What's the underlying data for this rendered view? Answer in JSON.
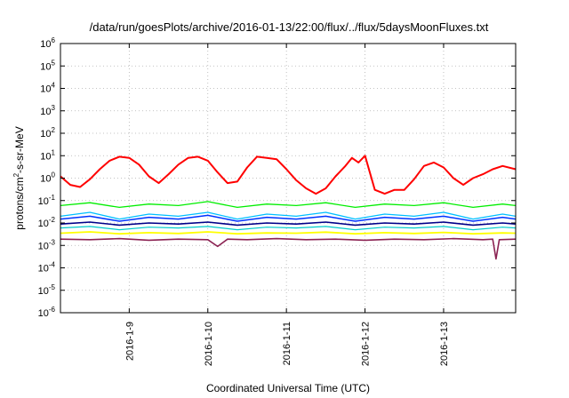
{
  "chart_data": {
    "type": "line",
    "title": "/data/run/goesPlots/archive/2016-01-13/22:00/flux/../flux/5daysMoonFluxes.txt",
    "xlabel": "Coordinated Universal Time (UTC)",
    "ylabel": {
      "base": "protons/cm",
      "sup": "2",
      "rest": "-s-sr-MeV"
    },
    "y_scale": "log",
    "xlim": [
      "2016-01-08T03:00",
      "2016-01-13T22:00"
    ],
    "ylim": [
      1e-06,
      1000000.0
    ],
    "grid": true,
    "x_ticks": [
      {
        "label": "2016-1-9",
        "date": "2016-01-09T00:00"
      },
      {
        "label": "2016-1-10",
        "date": "2016-01-10T00:00"
      },
      {
        "label": "2016-1-11",
        "date": "2016-01-11T00:00"
      },
      {
        "label": "2016-1-12",
        "date": "2016-01-12T00:00"
      },
      {
        "label": "2016-1-13",
        "date": "2016-01-13T00:00"
      }
    ],
    "y_ticks": [
      {
        "base": "10",
        "exp": "6",
        "value": 1000000.0
      },
      {
        "base": "10",
        "exp": "5",
        "value": 100000.0
      },
      {
        "base": "10",
        "exp": "4",
        "value": 10000.0
      },
      {
        "base": "10",
        "exp": "3",
        "value": 1000.0
      },
      {
        "base": "10",
        "exp": "2",
        "value": 100.0
      },
      {
        "base": "10",
        "exp": "1",
        "value": 10.0
      },
      {
        "base": "10",
        "exp": "0",
        "value": 1.0
      },
      {
        "base": "10",
        "exp": "-1",
        "value": 0.1
      },
      {
        "base": "10",
        "exp": "-2",
        "value": 0.01
      },
      {
        "base": "10",
        "exp": "-3",
        "value": 0.001
      },
      {
        "base": "10",
        "exp": "-4",
        "value": 0.0001
      },
      {
        "base": "10",
        "exp": "-5",
        "value": 1e-05
      },
      {
        "base": "10",
        "exp": "-6",
        "value": 1e-06
      }
    ],
    "series": [
      {
        "color": "#ff0000",
        "width": 2.0,
        "x": [
          "2016-01-08T03:00",
          "2016-01-08T06:00",
          "2016-01-08T09:00",
          "2016-01-08T12:00",
          "2016-01-08T15:00",
          "2016-01-08T18:00",
          "2016-01-08T21:00",
          "2016-01-09T00:00",
          "2016-01-09T03:00",
          "2016-01-09T06:00",
          "2016-01-09T09:00",
          "2016-01-09T12:00",
          "2016-01-09T15:00",
          "2016-01-09T18:00",
          "2016-01-09T21:00",
          "2016-01-10T00:00",
          "2016-01-10T03:00",
          "2016-01-10T06:00",
          "2016-01-10T09:00",
          "2016-01-10T12:00",
          "2016-01-10T15:00",
          "2016-01-10T18:00",
          "2016-01-10T21:00",
          "2016-01-11T00:00",
          "2016-01-11T03:00",
          "2016-01-11T06:00",
          "2016-01-11T09:00",
          "2016-01-11T12:00",
          "2016-01-11T15:00",
          "2016-01-11T18:00",
          "2016-01-11T20:00",
          "2016-01-11T22:00",
          "2016-01-12T00:00",
          "2016-01-12T03:00",
          "2016-01-12T06:00",
          "2016-01-12T09:00",
          "2016-01-12T12:00",
          "2016-01-12T15:00",
          "2016-01-12T18:00",
          "2016-01-12T21:00",
          "2016-01-13T00:00",
          "2016-01-13T03:00",
          "2016-01-13T06:00",
          "2016-01-13T09:00",
          "2016-01-13T12:00",
          "2016-01-13T15:00",
          "2016-01-13T18:00",
          "2016-01-13T22:00"
        ],
        "y": [
          1.2,
          0.5,
          0.4,
          0.9,
          2.5,
          6,
          9,
          8,
          4,
          1.2,
          0.6,
          1.5,
          4,
          8,
          9,
          6,
          1.8,
          0.6,
          0.7,
          3,
          9,
          8,
          7,
          2.5,
          0.8,
          0.35,
          0.2,
          0.35,
          1.2,
          3.5,
          8,
          5,
          10,
          0.3,
          0.2,
          0.3,
          0.3,
          0.9,
          3.5,
          5,
          3,
          1,
          0.5,
          1,
          1.5,
          2.5,
          3.5,
          2.5
        ]
      },
      {
        "color": "#00ee00",
        "width": 1.3,
        "x": [
          "2016-01-08T03:00",
          "2016-01-08T12:00",
          "2016-01-08T21:00",
          "2016-01-09T06:00",
          "2016-01-09T15:00",
          "2016-01-10T00:00",
          "2016-01-10T09:00",
          "2016-01-10T18:00",
          "2016-01-11T03:00",
          "2016-01-11T12:00",
          "2016-01-11T21:00",
          "2016-01-12T06:00",
          "2016-01-12T15:00",
          "2016-01-13T00:00",
          "2016-01-13T09:00",
          "2016-01-13T18:00",
          "2016-01-13T22:00"
        ],
        "y": [
          0.06,
          0.08,
          0.05,
          0.07,
          0.06,
          0.09,
          0.05,
          0.07,
          0.06,
          0.08,
          0.05,
          0.07,
          0.06,
          0.08,
          0.05,
          0.07,
          0.06
        ]
      },
      {
        "color": "#00bfff",
        "width": 1.3,
        "x": [
          "2016-01-08T03:00",
          "2016-01-08T12:00",
          "2016-01-08T21:00",
          "2016-01-09T06:00",
          "2016-01-09T15:00",
          "2016-01-10T00:00",
          "2016-01-10T09:00",
          "2016-01-10T18:00",
          "2016-01-11T03:00",
          "2016-01-11T12:00",
          "2016-01-11T21:00",
          "2016-01-12T06:00",
          "2016-01-12T15:00",
          "2016-01-13T00:00",
          "2016-01-13T09:00",
          "2016-01-13T18:00",
          "2016-01-13T22:00"
        ],
        "y": [
          0.02,
          0.03,
          0.015,
          0.025,
          0.02,
          0.03,
          0.015,
          0.025,
          0.02,
          0.03,
          0.015,
          0.025,
          0.02,
          0.03,
          0.015,
          0.025,
          0.02
        ]
      },
      {
        "color": "#0033ff",
        "width": 1.5,
        "x": [
          "2016-01-08T03:00",
          "2016-01-08T12:00",
          "2016-01-08T21:00",
          "2016-01-09T06:00",
          "2016-01-09T15:00",
          "2016-01-10T00:00",
          "2016-01-10T09:00",
          "2016-01-10T18:00",
          "2016-01-11T03:00",
          "2016-01-11T12:00",
          "2016-01-11T21:00",
          "2016-01-12T06:00",
          "2016-01-12T15:00",
          "2016-01-13T00:00",
          "2016-01-13T09:00",
          "2016-01-13T18:00",
          "2016-01-13T22:00"
        ],
        "y": [
          0.015,
          0.02,
          0.012,
          0.018,
          0.015,
          0.022,
          0.012,
          0.018,
          0.015,
          0.02,
          0.012,
          0.018,
          0.015,
          0.02,
          0.012,
          0.018,
          0.015
        ]
      },
      {
        "color": "#000088",
        "width": 1.6,
        "x": [
          "2016-01-08T03:00",
          "2016-01-08T12:00",
          "2016-01-08T21:00",
          "2016-01-09T06:00",
          "2016-01-09T15:00",
          "2016-01-10T00:00",
          "2016-01-10T09:00",
          "2016-01-10T18:00",
          "2016-01-11T03:00",
          "2016-01-11T12:00",
          "2016-01-11T21:00",
          "2016-01-12T06:00",
          "2016-01-12T15:00",
          "2016-01-13T00:00",
          "2016-01-13T09:00",
          "2016-01-13T18:00",
          "2016-01-13T22:00"
        ],
        "y": [
          0.009,
          0.011,
          0.008,
          0.01,
          0.009,
          0.011,
          0.008,
          0.01,
          0.009,
          0.011,
          0.008,
          0.01,
          0.009,
          0.011,
          0.008,
          0.01,
          0.009
        ]
      },
      {
        "color": "#00cccc",
        "width": 1.2,
        "x": [
          "2016-01-08T03:00",
          "2016-01-08T12:00",
          "2016-01-08T21:00",
          "2016-01-09T06:00",
          "2016-01-09T15:00",
          "2016-01-10T00:00",
          "2016-01-10T09:00",
          "2016-01-10T18:00",
          "2016-01-11T03:00",
          "2016-01-11T12:00",
          "2016-01-11T21:00",
          "2016-01-12T06:00",
          "2016-01-12T15:00",
          "2016-01-13T00:00",
          "2016-01-13T09:00",
          "2016-01-13T18:00",
          "2016-01-13T22:00"
        ],
        "y": [
          0.006,
          0.007,
          0.005,
          0.0065,
          0.006,
          0.007,
          0.005,
          0.0065,
          0.006,
          0.007,
          0.005,
          0.0065,
          0.006,
          0.007,
          0.005,
          0.0065,
          0.006
        ]
      },
      {
        "color": "#ffff00",
        "width": 1.8,
        "x": [
          "2016-01-08T03:00",
          "2016-01-08T12:00",
          "2016-01-08T21:00",
          "2016-01-09T06:00",
          "2016-01-09T15:00",
          "2016-01-10T00:00",
          "2016-01-10T09:00",
          "2016-01-10T18:00",
          "2016-01-11T03:00",
          "2016-01-11T12:00",
          "2016-01-11T21:00",
          "2016-01-12T06:00",
          "2016-01-12T15:00",
          "2016-01-13T00:00",
          "2016-01-13T09:00",
          "2016-01-13T18:00",
          "2016-01-13T22:00"
        ],
        "y": [
          0.0035,
          0.004,
          0.0033,
          0.0037,
          0.0034,
          0.004,
          0.0033,
          0.0036,
          0.0035,
          0.0039,
          0.0033,
          0.0037,
          0.0034,
          0.0038,
          0.0033,
          0.0036,
          0.0035
        ]
      },
      {
        "color": "#8b2252",
        "width": 1.6,
        "x": [
          "2016-01-08T03:00",
          "2016-01-08T12:00",
          "2016-01-08T21:00",
          "2016-01-09T06:00",
          "2016-01-09T15:00",
          "2016-01-10T00:00",
          "2016-01-10T03:00",
          "2016-01-10T06:00",
          "2016-01-10T12:00",
          "2016-01-10T21:00",
          "2016-01-11T06:00",
          "2016-01-11T15:00",
          "2016-01-12T00:00",
          "2016-01-12T09:00",
          "2016-01-12T18:00",
          "2016-01-13T03:00",
          "2016-01-13T12:00",
          "2016-01-13T15:00",
          "2016-01-13T16:00",
          "2016-01-13T17:00",
          "2016-01-13T22:00"
        ],
        "y": [
          0.0019,
          0.0018,
          0.002,
          0.0017,
          0.0019,
          0.0018,
          0.0009,
          0.0019,
          0.0018,
          0.002,
          0.0018,
          0.0019,
          0.0017,
          0.0019,
          0.0018,
          0.002,
          0.0018,
          0.0019,
          0.00025,
          0.0018,
          0.0019
        ]
      }
    ]
  }
}
